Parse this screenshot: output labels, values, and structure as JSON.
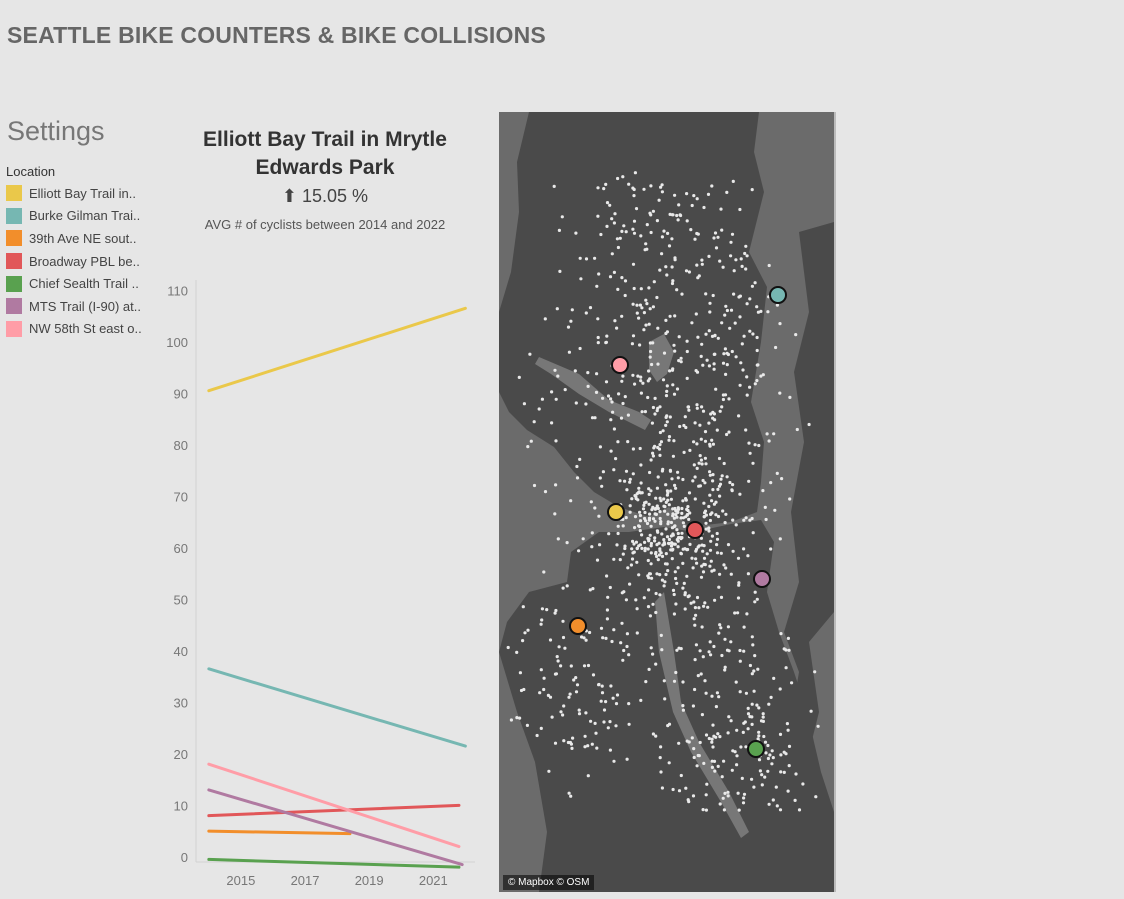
{
  "header": {
    "title": "SEATTLE BIKE COUNTERS & BIKE COLLISIONS"
  },
  "settings": {
    "title": "Settings",
    "legend_title": "Location",
    "items": [
      {
        "label": "Elliott Bay Trail in..",
        "color": "#eac84a"
      },
      {
        "label": "Burke Gilman Trai..",
        "color": "#76b7b2"
      },
      {
        "label": "39th Ave NE sout..",
        "color": "#f28e2b"
      },
      {
        "label": "Broadway PBL be..",
        "color": "#e15759"
      },
      {
        "label": "Chief Sealth Trail ..",
        "color": "#59a14f"
      },
      {
        "label": "MTS Trail (I-90) at..",
        "color": "#b07aa1"
      },
      {
        "label": "NW 58th St east o..",
        "color": "#ff9da7"
      }
    ]
  },
  "kpi": {
    "title": "Elliott Bay Trail in Mrytle Edwards Park",
    "arrow": "⬆",
    "value": "15.05 %",
    "subtitle": "AVG # of cyclists between 2014 and 2022"
  },
  "chart_data": {
    "type": "line",
    "x_ticks": [
      2015,
      2017,
      2019,
      2021
    ],
    "xlim": [
      2013.6,
      2022.3
    ],
    "y_ticks": [
      0,
      10,
      20,
      30,
      40,
      50,
      60,
      70,
      80,
      90,
      100,
      110
    ],
    "ylim": [
      -1,
      112
    ],
    "series": [
      {
        "name": "Elliott Bay Trail in..",
        "color": "#eac84a",
        "x": [
          2014,
          2022
        ],
        "y": [
          90.5,
          106.5
        ]
      },
      {
        "name": "Burke Gilman Trai..",
        "color": "#76b7b2",
        "x": [
          2014,
          2022
        ],
        "y": [
          36.5,
          21.5
        ]
      },
      {
        "name": "39th Ave NE sout..",
        "color": "#f28e2b",
        "x": [
          2014,
          2018.4
        ],
        "y": [
          5,
          4.5
        ]
      },
      {
        "name": "Broadway PBL be..",
        "color": "#e15759",
        "x": [
          2014,
          2021.8
        ],
        "y": [
          8,
          10
        ]
      },
      {
        "name": "Chief Sealth Trail ..",
        "color": "#59a14f",
        "x": [
          2014,
          2021.8
        ],
        "y": [
          -0.5,
          -2
        ]
      },
      {
        "name": "MTS Trail (I-90) at..",
        "color": "#b07aa1",
        "x": [
          2014,
          2021.9
        ],
        "y": [
          13,
          -1.5
        ]
      },
      {
        "name": "NW 58th St east o..",
        "color": "#ff9da7",
        "x": [
          2014,
          2021.8
        ],
        "y": [
          18,
          2
        ]
      }
    ]
  },
  "map": {
    "credit": "© Mapbox © OSM",
    "markers": [
      {
        "name": "Elliott Bay Trail",
        "color": "#eac84a"
      },
      {
        "name": "Burke Gilman Trail",
        "color": "#76b7b2"
      },
      {
        "name": "39th Ave NE",
        "color": "#f28e2b"
      },
      {
        "name": "Broadway PBL",
        "color": "#e15759"
      },
      {
        "name": "Chief Sealth Trail",
        "color": "#59a14f"
      },
      {
        "name": "MTS Trail (I-90)",
        "color": "#b07aa1"
      },
      {
        "name": "NW 58th St",
        "color": "#ff9da7"
      }
    ]
  }
}
